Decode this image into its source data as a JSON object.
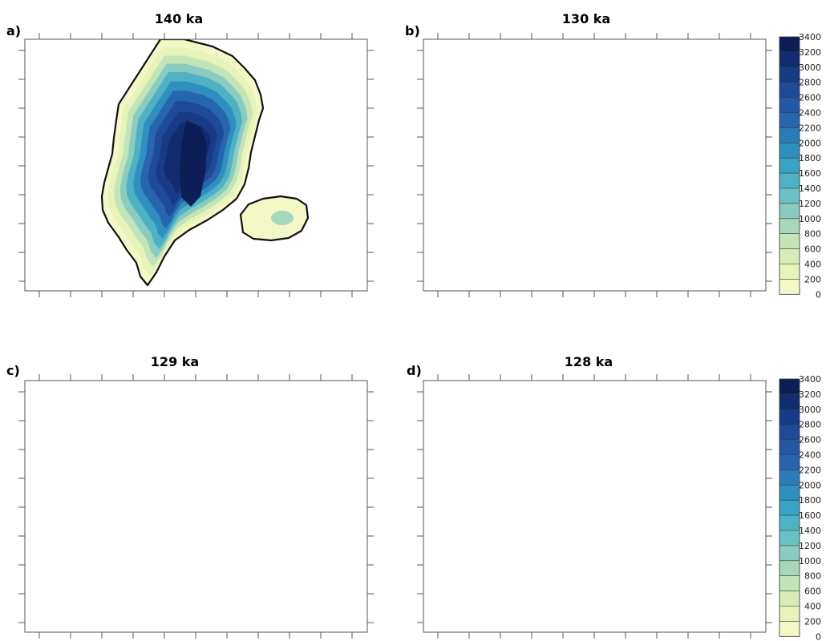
{
  "panels": [
    {
      "letter": "a)",
      "title": "140 ka"
    },
    {
      "letter": "b)",
      "title": "130 ka"
    },
    {
      "letter": "c)",
      "title": "129 ka"
    },
    {
      "letter": "d)",
      "title": "128 ka"
    }
  ],
  "colorbar": {
    "levels": [
      "3400",
      "3200",
      "3000",
      "2800",
      "2600",
      "2400",
      "2200",
      "2000",
      "1800",
      "1600",
      "1400",
      "1200",
      "1000",
      "800",
      "600",
      "400",
      "200",
      "0"
    ],
    "colors": [
      "#0d1e57",
      "#112c6e",
      "#183b86",
      "#1f4a98",
      "#2458a4",
      "#2766ae",
      "#2b7bb7",
      "#2f90c0",
      "#38a3c4",
      "#4eb2c4",
      "#6ac0c3",
      "#8accc0",
      "#a8d8bb",
      "#c3e3b8",
      "#d8ecb6",
      "#e8f3ba",
      "#f4f8c6",
      "#fbfbd9"
    ]
  }
}
